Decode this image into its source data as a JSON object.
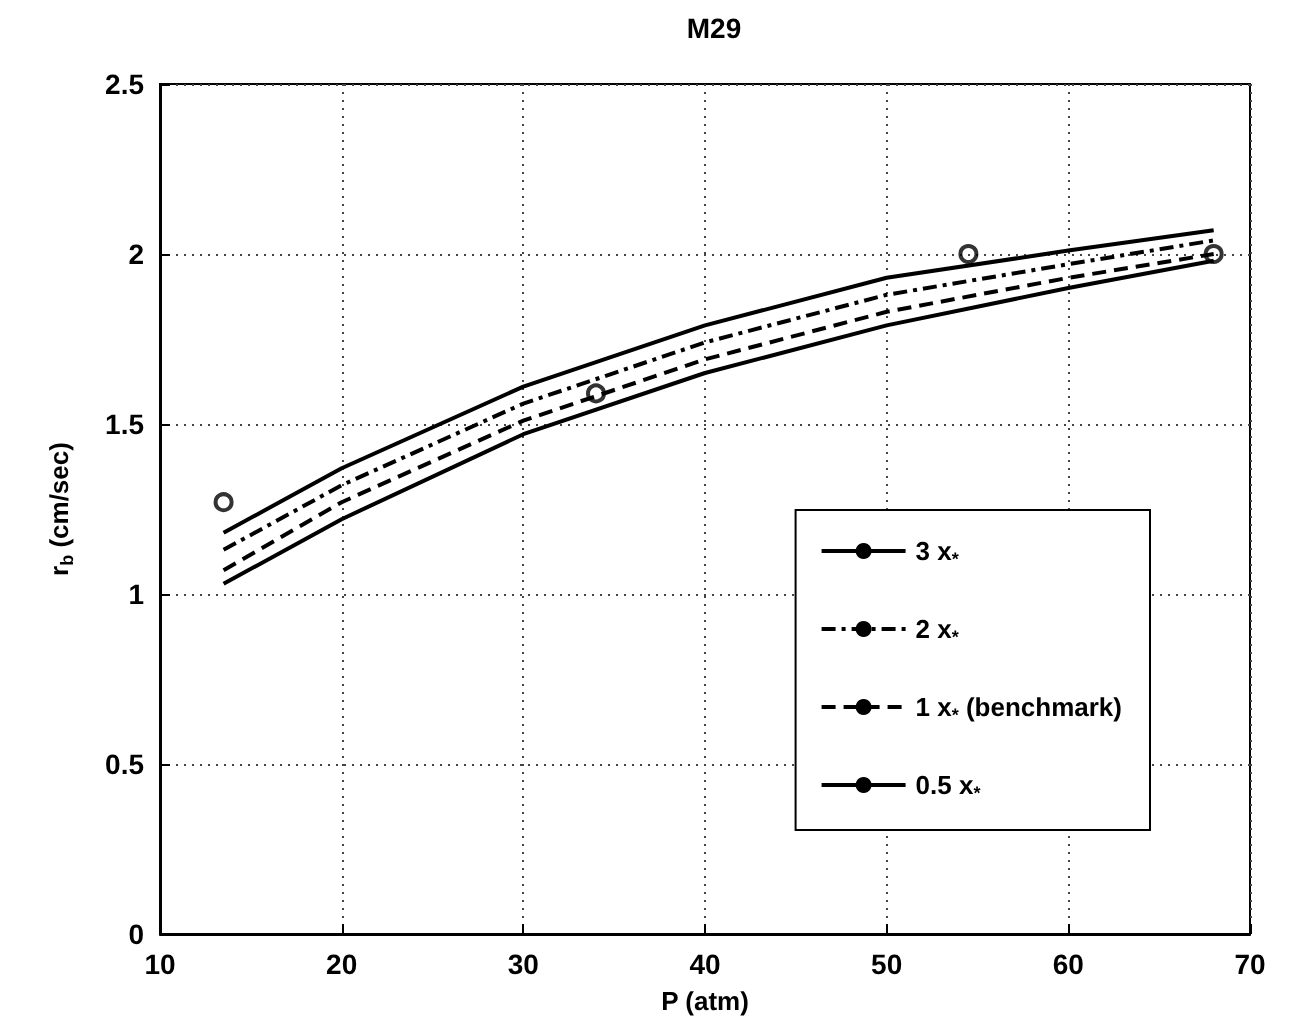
{
  "chart_data": {
    "type": "line",
    "title": "M29",
    "xlabel": "P (atm)",
    "ylabel": "r$_{b}$ (cm/sec)",
    "x": [
      13.5,
      20,
      30,
      40,
      50,
      60,
      68
    ],
    "series": [
      {
        "name": "3 x$_{*}$",
        "color": "#000000",
        "line_style": "solid",
        "values": [
          1.18,
          1.37,
          1.61,
          1.79,
          1.93,
          2.01,
          2.07
        ]
      },
      {
        "name": "2 x$_{*}$",
        "color": "#000000",
        "line_style": "dashdot",
        "values": [
          1.13,
          1.32,
          1.56,
          1.74,
          1.88,
          1.97,
          2.04
        ]
      },
      {
        "name": "1 x$_{*}$ (benchmark)",
        "color": "#000000",
        "line_style": "dashed",
        "values": [
          1.07,
          1.27,
          1.51,
          1.69,
          1.83,
          1.93,
          2.0
        ]
      },
      {
        "name": "0.5 x$_{*}$",
        "color": "#000000",
        "line_style": "solid",
        "values": [
          1.03,
          1.22,
          1.47,
          1.65,
          1.79,
          1.9,
          1.98
        ]
      },
      {
        "type": "scatter",
        "color": "#000000",
        "marker": "circle",
        "x": [
          13.5,
          34,
          54.5,
          68
        ],
        "values": [
          1.27,
          1.59,
          2.0,
          2.0
        ]
      }
    ],
    "xlim": [
      10,
      70
    ],
    "xticks": [
      10,
      20,
      30,
      40,
      50,
      60,
      70
    ],
    "ylim": [
      0,
      2.5
    ],
    "yticks": [
      0,
      0.5,
      1,
      1.5,
      2,
      2.5
    ],
    "grid": true,
    "legend": "bottom right",
    "marker": "none"
  }
}
